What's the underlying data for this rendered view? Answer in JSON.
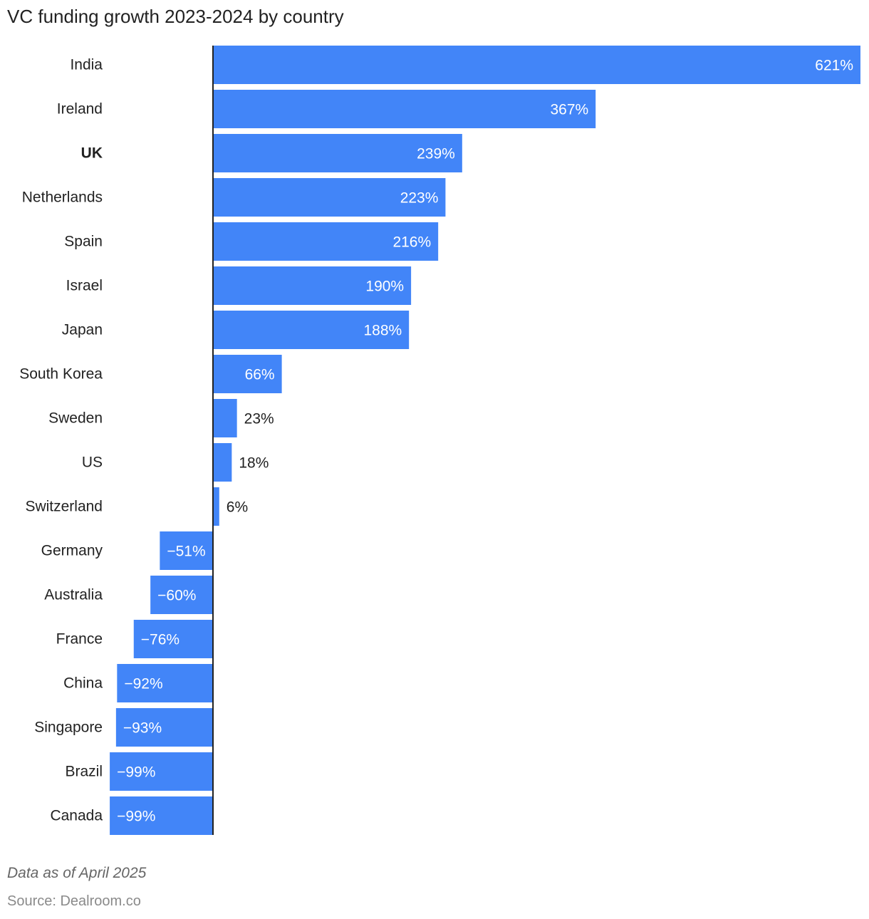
{
  "chart_data": {
    "type": "bar",
    "orientation": "horizontal",
    "title": "VC funding growth 2023-2024 by country",
    "categories": [
      "India",
      "Ireland",
      "UK",
      "Netherlands",
      "Spain",
      "Israel",
      "Japan",
      "South Korea",
      "Sweden",
      "US",
      "Switzerland",
      "Germany",
      "Australia",
      "France",
      "China",
      "Singapore",
      "Brazil",
      "Canada"
    ],
    "values": [
      621,
      367,
      239,
      223,
      216,
      190,
      188,
      66,
      23,
      18,
      6,
      -51,
      -60,
      -76,
      -92,
      -93,
      -99,
      -99
    ],
    "data_labels": [
      "621%",
      "367%",
      "239%",
      "223%",
      "216%",
      "190%",
      "188%",
      "66%",
      "23%",
      "18%",
      "6%",
      "−51%",
      "−60%",
      "−76%",
      "−92%",
      "−93%",
      "−99%",
      "−99%"
    ],
    "highlighted_category": "UK",
    "unit": "%",
    "xlim": [
      -99,
      621
    ],
    "grid": false,
    "legend": "none",
    "bar_color": "#4285f8",
    "axis_color": "#222222"
  },
  "footer": {
    "note": "Data as of April 2025",
    "source": "Source: Dealroom.co"
  }
}
